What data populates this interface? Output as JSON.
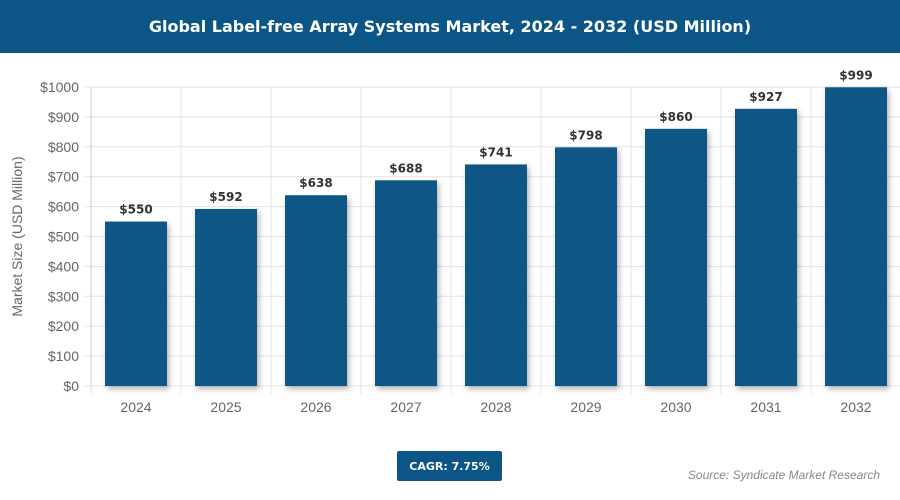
{
  "header": {
    "title": "Global Label-free Array Systems Market, 2024 - 2032 (USD Million)"
  },
  "chart_data": {
    "type": "bar",
    "title": "Global Label-free Array Systems Market, 2024 - 2032 (USD Million)",
    "categories": [
      "2024",
      "2025",
      "2026",
      "2027",
      "2028",
      "2029",
      "2030",
      "2031",
      "2032"
    ],
    "values": [
      550,
      592,
      638,
      688,
      741,
      798,
      860,
      927,
      999
    ],
    "data_labels": [
      "$550",
      "$592",
      "$638",
      "$688",
      "$741",
      "$798",
      "$860",
      "$927",
      "$999"
    ],
    "xlabel": "",
    "ylabel": "Market Size (USD Million)",
    "ylim": [
      0,
      1000
    ],
    "yticks": [
      "$0",
      "$100",
      "$200",
      "$300",
      "$400",
      "$500",
      "$600",
      "$700",
      "$800",
      "$900",
      "$1000"
    ],
    "grid": true,
    "bar_color": "#0b5686"
  },
  "footer": {
    "cagr": "CAGR: 7.75%",
    "source": "Source: Syndicate Market Research"
  }
}
